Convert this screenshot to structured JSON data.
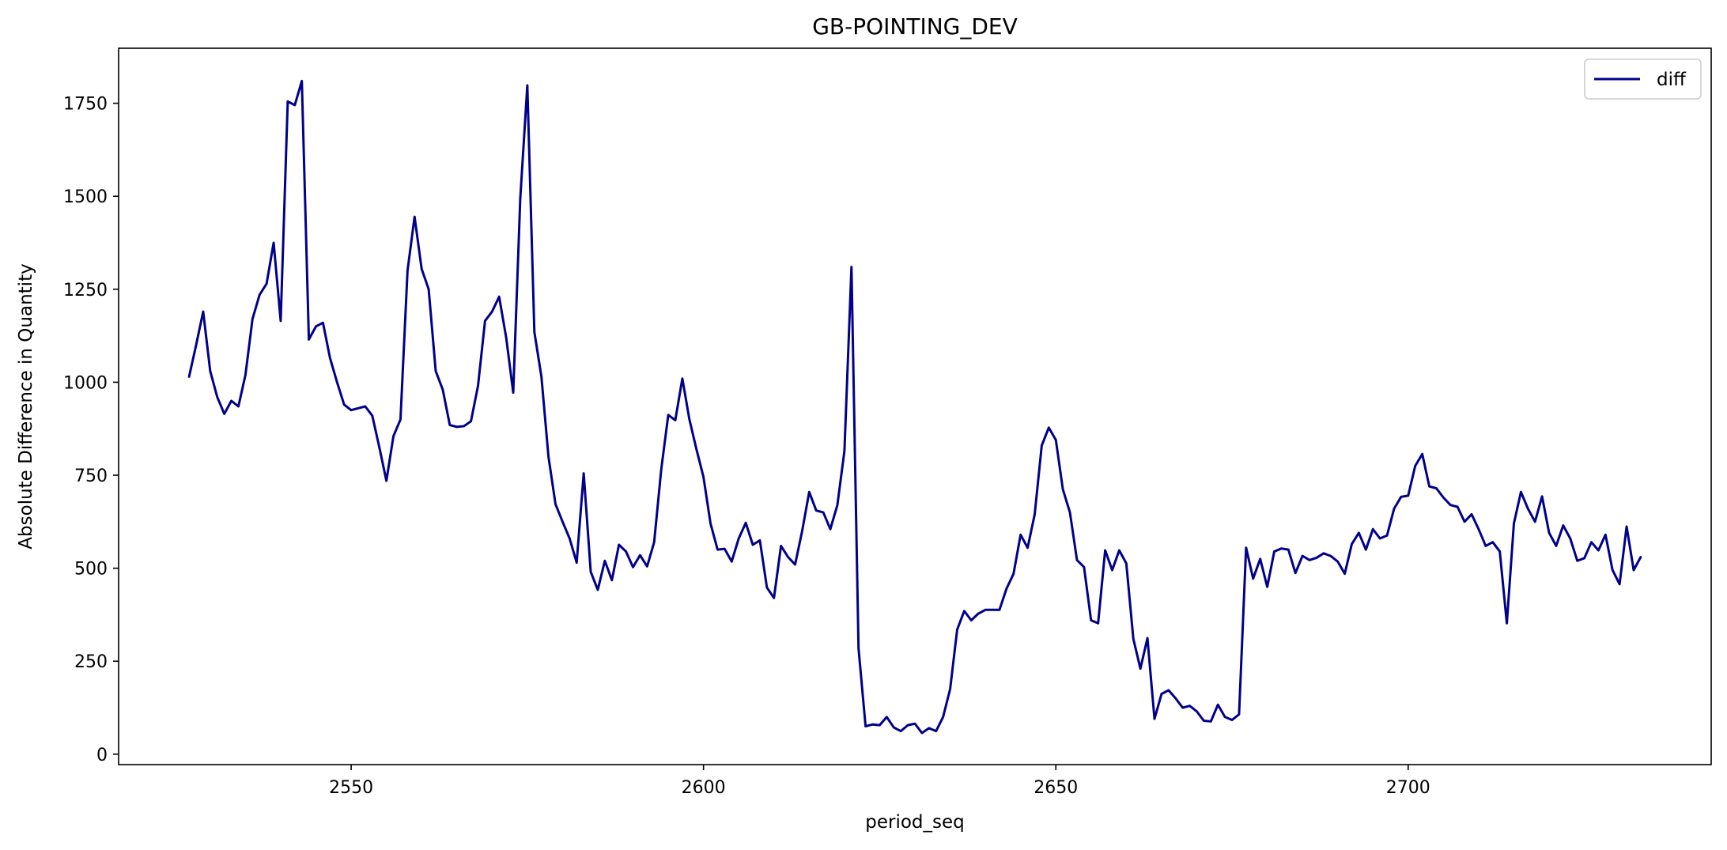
{
  "chart_data": {
    "type": "line",
    "title": "GB-POINTING_DEV",
    "xlabel": "period_seq",
    "ylabel": "Absolute Difference in Quantity",
    "xlim": [
      2517,
      2743
    ],
    "ylim": [
      -28,
      1898
    ],
    "x_ticks": [
      2550,
      2600,
      2650,
      2700
    ],
    "x_tick_labels": [
      "2550",
      "2600",
      "2650",
      "2700"
    ],
    "y_ticks": [
      0,
      250,
      500,
      750,
      1000,
      1250,
      1500,
      1750
    ],
    "y_tick_labels": [
      "0",
      "250",
      "500",
      "750",
      "1000",
      "1250",
      "1500",
      "1750"
    ],
    "grid": false,
    "legend_position": "top-right",
    "series": [
      {
        "name": "diff",
        "color": "#00008b",
        "x_start": 2527,
        "values": [
          1015,
          1100,
          1190,
          1030,
          960,
          915,
          950,
          935,
          1020,
          1170,
          1235,
          1265,
          1375,
          1165,
          1755,
          1745,
          1810,
          1115,
          1150,
          1160,
          1065,
          1000,
          940,
          925,
          930,
          935,
          910,
          825,
          735,
          855,
          900,
          1300,
          1445,
          1305,
          1250,
          1030,
          980,
          885,
          880,
          882,
          895,
          990,
          1165,
          1190,
          1230,
          1120,
          972,
          1495,
          1798,
          1135,
          1015,
          800,
          672,
          625,
          580,
          515,
          755,
          490,
          442,
          520,
          468,
          563,
          545,
          503,
          535,
          505,
          570,
          765,
          912,
          898,
          1010,
          900,
          820,
          745,
          620,
          550,
          552,
          518,
          580,
          622,
          563,
          575,
          448,
          420,
          560,
          530,
          510,
          600,
          705,
          655,
          650,
          605,
          670,
          815,
          1310,
          285,
          75,
          80,
          78,
          100,
          72,
          62,
          78,
          82,
          57,
          70,
          62,
          100,
          175,
          335,
          385,
          360,
          378,
          388,
          388,
          388,
          445,
          485,
          590,
          555,
          645,
          830,
          878,
          845,
          712,
          650,
          522,
          503,
          360,
          352,
          548,
          495,
          548,
          513,
          310,
          230,
          312,
          95,
          162,
          172,
          150,
          125,
          130,
          115,
          90,
          88,
          133,
          100,
          92,
          107,
          555,
          472,
          525,
          450,
          545,
          553,
          550,
          487,
          533,
          522,
          528,
          540,
          533,
          518,
          485,
          565,
          595,
          550,
          605,
          580,
          588,
          660,
          692,
          695,
          775,
          807,
          720,
          715,
          690,
          670,
          665,
          625,
          645,
          605,
          560,
          570,
          545,
          352,
          620,
          705,
          660,
          625,
          693,
          595,
          560,
          615,
          580,
          520,
          527,
          570,
          548,
          590,
          495,
          457,
          612,
          495,
          530
        ]
      }
    ]
  }
}
